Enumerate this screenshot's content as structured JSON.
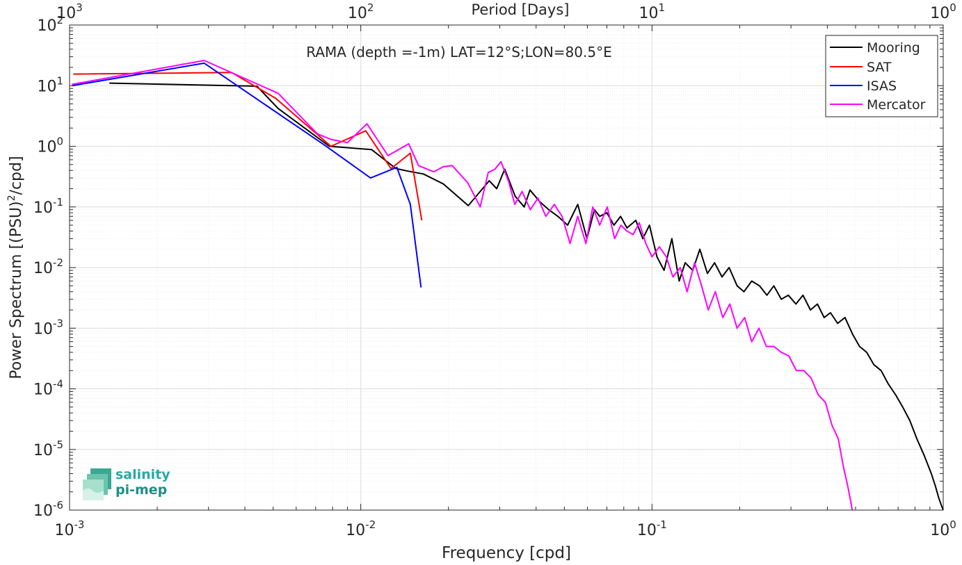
{
  "chart_data": {
    "type": "line",
    "title": "RAMA (depth =-1m) LAT=12°S;LON=80.5°E",
    "xlabel": "Frequency [cpd]",
    "ylabel_main": "Power Spectrum [(PSU)",
    "ylabel_sup": "2",
    "ylabel_tail": "/cpd]",
    "top_axis_label": "Period [Days]",
    "xscale": "log",
    "yscale": "log",
    "xlim": [
      0.001,
      1
    ],
    "ylim": [
      1e-06,
      100
    ],
    "grid": true,
    "legend_position": "top-right",
    "x_ticks": [
      {
        "value": 0.001,
        "base": "10",
        "exp": "-3"
      },
      {
        "value": 0.01,
        "base": "10",
        "exp": "-2"
      },
      {
        "value": 0.1,
        "base": "10",
        "exp": "-1"
      },
      {
        "value": 1,
        "base": "10",
        "exp": "0"
      }
    ],
    "top_ticks": [
      {
        "value": 0.001,
        "base": "10",
        "exp": "3"
      },
      {
        "value": 0.01,
        "base": "10",
        "exp": "2"
      },
      {
        "value": 0.1,
        "base": "10",
        "exp": "1"
      },
      {
        "value": 1,
        "base": "10",
        "exp": "0"
      }
    ],
    "y_ticks": [
      {
        "value": 100,
        "base": "10",
        "exp": "2"
      },
      {
        "value": 10,
        "base": "10",
        "exp": "1"
      },
      {
        "value": 1,
        "base": "10",
        "exp": "0"
      },
      {
        "value": 0.1,
        "base": "10",
        "exp": "-1"
      },
      {
        "value": 0.01,
        "base": "10",
        "exp": "-2"
      },
      {
        "value": 0.001,
        "base": "10",
        "exp": "-3"
      },
      {
        "value": 0.0001,
        "base": "10",
        "exp": "-4"
      },
      {
        "value": 1e-05,
        "base": "10",
        "exp": "-5"
      },
      {
        "value": 1e-06,
        "base": "10",
        "exp": "-6"
      }
    ],
    "series": [
      {
        "name": "Mooring",
        "color": "#000000",
        "x": [
          0.00137,
          0.0044,
          0.0052,
          0.0078,
          0.0109,
          0.0132,
          0.0145,
          0.0164,
          0.0192,
          0.0234,
          0.0276,
          0.0293,
          0.0312,
          0.0339,
          0.0364,
          0.0381,
          0.0413,
          0.0442,
          0.0475,
          0.0513,
          0.0556,
          0.0598,
          0.0634,
          0.0661,
          0.07,
          0.074,
          0.078,
          0.082,
          0.088,
          0.093,
          0.098,
          0.104,
          0.11,
          0.117,
          0.124,
          0.13,
          0.138,
          0.146,
          0.155,
          0.164,
          0.174,
          0.184,
          0.196,
          0.207,
          0.22,
          0.234,
          0.248,
          0.262,
          0.278,
          0.294,
          0.312,
          0.33,
          0.35,
          0.37,
          0.39,
          0.41,
          0.434,
          0.46,
          0.488,
          0.516,
          0.546,
          0.578,
          0.612,
          0.648,
          0.686,
          0.726,
          0.768,
          0.812,
          0.86,
          0.91,
          0.94,
          0.965,
          0.985,
          1.0
        ],
        "y": [
          11,
          9.8,
          4.2,
          1.0,
          0.88,
          0.43,
          0.39,
          0.35,
          0.24,
          0.105,
          0.27,
          0.2,
          0.42,
          0.15,
          0.1,
          0.19,
          0.12,
          0.09,
          0.07,
          0.05,
          0.11,
          0.03,
          0.09,
          0.07,
          0.08,
          0.05,
          0.07,
          0.045,
          0.06,
          0.03,
          0.05,
          0.015,
          0.009,
          0.03,
          0.006,
          0.012,
          0.009,
          0.02,
          0.008,
          0.012,
          0.007,
          0.01,
          0.005,
          0.004,
          0.006,
          0.005,
          0.0035,
          0.005,
          0.003,
          0.0035,
          0.0025,
          0.0035,
          0.002,
          0.0025,
          0.0015,
          0.0018,
          0.0012,
          0.0015,
          0.0008,
          0.0005,
          0.0004,
          0.00025,
          0.0002,
          0.00012,
          8e-05,
          5e-05,
          3e-05,
          1.5e-05,
          8e-06,
          4e-06,
          2.5e-06,
          1.6e-06,
          1.2e-06,
          1e-06
        ]
      },
      {
        "name": "SAT",
        "color": "#ff0000",
        "x": [
          0.00103,
          0.0036,
          0.0051,
          0.0079,
          0.0104,
          0.0127,
          0.0148,
          0.0162
        ],
        "y": [
          15.5,
          16.5,
          6.2,
          1.0,
          1.8,
          0.43,
          0.77,
          0.06
        ]
      },
      {
        "name": "ISAS",
        "color": "#0000ff",
        "x": [
          0.00102,
          0.0029,
          0.0075,
          0.0108,
          0.0133,
          0.0148,
          0.0161
        ],
        "y": [
          10,
          23.5,
          1.05,
          0.3,
          0.45,
          0.11,
          0.0047
        ]
      },
      {
        "name": "Mercator",
        "color": "#ff00ff",
        "x": [
          0.00102,
          0.0029,
          0.0052,
          0.0071,
          0.0079,
          0.009,
          0.0105,
          0.0124,
          0.0146,
          0.0158,
          0.0178,
          0.0192,
          0.0206,
          0.0233,
          0.0257,
          0.0274,
          0.0289,
          0.0303,
          0.0322,
          0.0338,
          0.0358,
          0.0382,
          0.0406,
          0.0432,
          0.0462,
          0.0491,
          0.0523,
          0.0556,
          0.0593,
          0.0626,
          0.0661,
          0.0702,
          0.0744,
          0.0782,
          0.082,
          0.0862,
          0.0904,
          0.0952,
          0.1,
          0.106,
          0.112,
          0.118,
          0.125,
          0.132,
          0.14,
          0.148,
          0.156,
          0.165,
          0.175,
          0.185,
          0.196,
          0.208,
          0.22,
          0.233,
          0.247,
          0.262,
          0.278,
          0.295,
          0.313,
          0.332,
          0.352,
          0.372,
          0.394,
          0.415,
          0.436,
          0.455,
          0.47,
          0.48,
          0.487
        ],
        "y": [
          10.5,
          26,
          7.5,
          1.6,
          1.3,
          1.15,
          2.35,
          0.7,
          1.1,
          0.48,
          0.38,
          0.46,
          0.48,
          0.25,
          0.1,
          0.37,
          0.42,
          0.56,
          0.26,
          0.11,
          0.18,
          0.09,
          0.14,
          0.07,
          0.11,
          0.07,
          0.025,
          0.07,
          0.025,
          0.1,
          0.05,
          0.1,
          0.03,
          0.05,
          0.04,
          0.035,
          0.055,
          0.025,
          0.015,
          0.022,
          0.015,
          0.007,
          0.01,
          0.004,
          0.012,
          0.005,
          0.002,
          0.004,
          0.0015,
          0.0025,
          0.001,
          0.0015,
          0.0006,
          0.001,
          0.0005,
          0.0005,
          0.0004,
          0.00035,
          0.0002,
          0.0002,
          0.00015,
          8e-05,
          6e-05,
          2.5e-05,
          1.5e-05,
          5e-06,
          2.5e-06,
          1.5e-06,
          1e-06
        ]
      }
    ]
  },
  "logo": {
    "line1": "salinity",
    "line2": "pi-mep"
  }
}
